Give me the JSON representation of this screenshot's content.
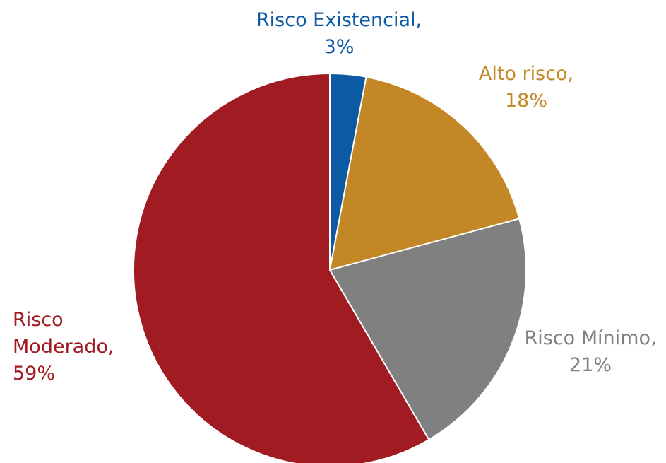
{
  "chart_data": {
    "type": "pie",
    "start_angle_deg": 0,
    "direction": "clockwise",
    "slices": [
      {
        "name": "Risco Existencial",
        "value": 3,
        "color": "#0B5AA3",
        "label_lines": [
          "Risco Existencial,",
          "3%"
        ]
      },
      {
        "name": "Alto risco",
        "value": 18,
        "color": "#C38726",
        "label_lines": [
          "Alto risco,",
          "18%"
        ]
      },
      {
        "name": "Risco Mínimo",
        "value": 21,
        "color": "#808080",
        "label_lines": [
          "Risco Mínimo,",
          "21%"
        ]
      },
      {
        "name": "Risco Moderado",
        "value": 59,
        "color": "#A11C22",
        "label_lines": [
          "Risco",
          "Moderado,",
          "59%"
        ]
      }
    ]
  }
}
